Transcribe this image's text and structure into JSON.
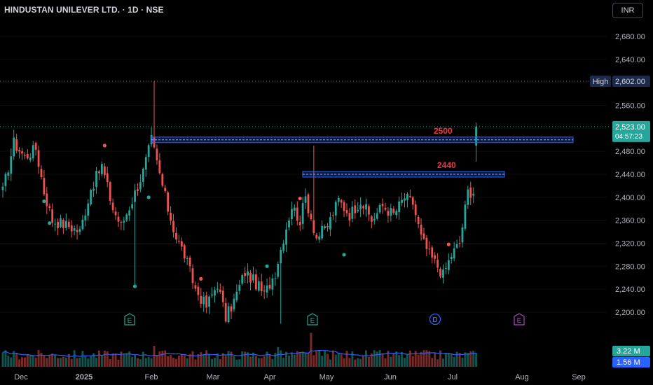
{
  "header": {
    "symbol_title": "HINDUSTAN UNILEVER LTD. · 1D · NSE",
    "currency_button": "INR"
  },
  "colors": {
    "up": "#26a69a",
    "down": "#ef5350",
    "level_line": "#2962ff",
    "level_text": "#f23645",
    "volume_ma": "#2962ff",
    "background": "#000000",
    "axis_text": "#b2b5be",
    "price_badge_bg": "#26a69a",
    "high_badge_bg": "#1e2a4a"
  },
  "chart_data": {
    "type": "candlestick",
    "title": "HINDUSTAN UNILEVER LTD. · 1D · NSE",
    "price_axis": {
      "ylim": [
        2180,
        2720
      ],
      "ticks": [
        2200,
        2240,
        2280,
        2320,
        2360,
        2400,
        2440,
        2480,
        2520,
        2560,
        2600,
        2640,
        2680
      ],
      "tick_labels": [
        "2,200.00",
        "2,240.00",
        "2,280.00",
        "2,320.00",
        "2,360.00",
        "2,400.00",
        "2,440.00",
        "2,480.00",
        "2,520.00",
        "2,560.00",
        "2,600.00",
        "2,640.00",
        "2,680.00"
      ]
    },
    "time_axis": {
      "labels": [
        "Dec",
        "2025",
        "Feb",
        "Mar",
        "Apr",
        "May",
        "Jun",
        "Jul",
        "Aug",
        "Sep"
      ]
    },
    "horizontal_levels": [
      {
        "label": "2500",
        "value": 2500,
        "start": "Feb",
        "end": "Sep"
      },
      {
        "label": "2440",
        "value": 2440,
        "start": "Apr",
        "end": "Aug"
      }
    ],
    "high": {
      "label": "High",
      "value": 2602,
      "text": "2,602.00"
    },
    "last_price": {
      "value": 2523,
      "text": "2,523.00",
      "countdown": "04:57:23"
    },
    "volume": {
      "last": "3.22 M",
      "moving_average": "1.56 M"
    },
    "event_markers": [
      {
        "icon": "E",
        "kind": "earnings",
        "month": "Jan"
      },
      {
        "icon": "E",
        "kind": "earnings",
        "month": "Apr"
      },
      {
        "icon": "D",
        "kind": "dividend",
        "month": "Jun"
      },
      {
        "icon": "E",
        "kind": "earnings-upcoming",
        "month": "Jul"
      }
    ],
    "anchors": [
      {
        "i": 0,
        "c": 2410
      },
      {
        "i": 4,
        "c": 2495
      },
      {
        "i": 8,
        "c": 2470
      },
      {
        "i": 12,
        "c": 2485
      },
      {
        "i": 15,
        "c": 2410
      },
      {
        "i": 18,
        "c": 2360
      },
      {
        "i": 24,
        "c": 2350
      },
      {
        "i": 28,
        "c": 2340
      },
      {
        "i": 32,
        "c": 2415
      },
      {
        "i": 36,
        "c": 2455
      },
      {
        "i": 40,
        "c": 2380
      },
      {
        "i": 43,
        "c": 2350
      },
      {
        "i": 47,
        "c": 2395
      },
      {
        "i": 51,
        "c": 2445
      },
      {
        "i": 54,
        "c": 2500
      },
      {
        "i": 57,
        "c": 2440
      },
      {
        "i": 60,
        "c": 2380
      },
      {
        "i": 63,
        "c": 2330
      },
      {
        "i": 66,
        "c": 2300
      },
      {
        "i": 70,
        "c": 2240
      },
      {
        "i": 74,
        "c": 2210
      },
      {
        "i": 78,
        "c": 2250
      },
      {
        "i": 81,
        "c": 2190
      },
      {
        "i": 84,
        "c": 2220
      },
      {
        "i": 88,
        "c": 2270
      },
      {
        "i": 92,
        "c": 2250
      },
      {
        "i": 95,
        "c": 2230
      },
      {
        "i": 99,
        "c": 2270
      },
      {
        "i": 102,
        "c": 2330
      },
      {
        "i": 105,
        "c": 2385
      },
      {
        "i": 108,
        "c": 2360
      },
      {
        "i": 110,
        "c": 2400
      },
      {
        "i": 114,
        "c": 2330
      },
      {
        "i": 118,
        "c": 2350
      },
      {
        "i": 122,
        "c": 2395
      },
      {
        "i": 126,
        "c": 2370
      },
      {
        "i": 130,
        "c": 2395
      },
      {
        "i": 134,
        "c": 2360
      },
      {
        "i": 138,
        "c": 2385
      },
      {
        "i": 142,
        "c": 2370
      },
      {
        "i": 146,
        "c": 2400
      },
      {
        "i": 149,
        "c": 2390
      },
      {
        "i": 152,
        "c": 2330
      },
      {
        "i": 155,
        "c": 2300
      },
      {
        "i": 158,
        "c": 2280
      },
      {
        "i": 160,
        "c": 2265
      },
      {
        "i": 163,
        "c": 2300
      },
      {
        "i": 166,
        "c": 2320
      },
      {
        "i": 169,
        "c": 2410
      },
      {
        "i": 171,
        "c": 2410
      },
      {
        "i": 172,
        "c": 2523
      }
    ]
  }
}
